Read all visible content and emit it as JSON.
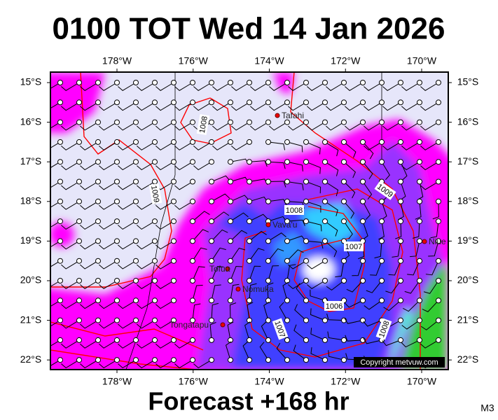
{
  "header": {
    "title": "0100 TOT Wed 14 Jan 2026"
  },
  "footer": {
    "forecast": "Forecast +168 hr",
    "model": "M3"
  },
  "map": {
    "lon_labels": [
      "178°W",
      "176°W",
      "174°W",
      "172°W",
      "170°W"
    ],
    "lat_labels": [
      "15°S",
      "16°S",
      "17°S",
      "18°S",
      "19°S",
      "20°S",
      "21°S",
      "22°S"
    ],
    "places": [
      {
        "label": "Tafahi"
      },
      {
        "label": "Vava'u"
      },
      {
        "label": "Tofua"
      },
      {
        "label": "Nomuka"
      },
      {
        "label": "Tongatapu"
      },
      {
        "label": "Niue"
      }
    ],
    "isobars": [
      {
        "label": "1008"
      },
      {
        "label": "1009"
      },
      {
        "label": "1008"
      },
      {
        "label": "1007"
      },
      {
        "label": "1006"
      },
      {
        "label": "1009"
      },
      {
        "label": "1008"
      },
      {
        "label": "1007"
      }
    ],
    "copyright": "Copyright metvuw.com"
  }
}
